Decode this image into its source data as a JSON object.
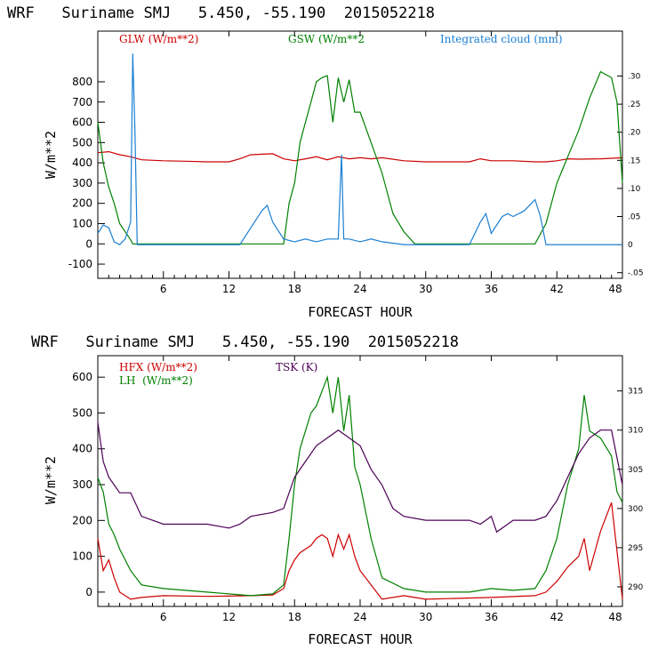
{
  "chart_data": [
    {
      "type": "line",
      "title": "WRF   Suriname SMJ   5.450, -55.190  2015052218",
      "xlabel": "FORECAST HOUR",
      "ylabel": "W/m**2",
      "xlim": [
        0,
        48
      ],
      "ylim": [
        -170,
        1050
      ],
      "y2lim": [
        -0.06,
        0.38
      ],
      "xticks": [
        6,
        12,
        18,
        24,
        30,
        36,
        42,
        48
      ],
      "yticks": [
        -100,
        0,
        100,
        200,
        300,
        400,
        500,
        600,
        700,
        800
      ],
      "y2ticks": [
        -0.05,
        0,
        0.05,
        0.1,
        0.15,
        0.2,
        0.25,
        0.3
      ],
      "y2ticklabels": [
        "-.05",
        "0",
        ".05",
        ".10",
        ".15",
        ".20",
        ".25",
        ".30"
      ],
      "series": [
        {
          "name": "GLW (W/m**2)",
          "color": "#cc0000",
          "axis": "left",
          "x": [
            0,
            1,
            2,
            3,
            4,
            6,
            8,
            10,
            12,
            13,
            14,
            16,
            17,
            18,
            19,
            20,
            21,
            22,
            23,
            24,
            25,
            26,
            28,
            30,
            34,
            35,
            36,
            38,
            40,
            41,
            42,
            43,
            44,
            46,
            48
          ],
          "y": [
            450,
            455,
            440,
            430,
            415,
            410,
            408,
            405,
            405,
            420,
            440,
            445,
            420,
            410,
            420,
            430,
            415,
            430,
            420,
            425,
            420,
            425,
            410,
            405,
            405,
            420,
            410,
            410,
            405,
            405,
            410,
            420,
            418,
            420,
            425
          ]
        },
        {
          "name": "GSW (W/m**2",
          "color": "#008000",
          "axis": "left",
          "x": [
            0,
            0.5,
            1,
            1.5,
            2,
            2.5,
            3,
            3.2,
            3.5,
            4,
            14,
            15,
            16,
            17,
            17.5,
            18,
            18.5,
            19,
            19.5,
            20,
            20.5,
            21,
            21.5,
            22,
            22.5,
            23,
            23.5,
            24,
            25,
            26,
            27,
            28,
            29,
            39,
            40,
            41,
            42,
            43,
            44,
            45,
            46,
            47,
            47.5,
            48
          ],
          "y": [
            600,
            400,
            280,
            200,
            100,
            60,
            20,
            0,
            0,
            0,
            0,
            0,
            0,
            0,
            200,
            300,
            500,
            600,
            700,
            800,
            820,
            830,
            600,
            820,
            700,
            810,
            650,
            650,
            500,
            350,
            150,
            60,
            0,
            0,
            0,
            100,
            300,
            430,
            560,
            720,
            850,
            820,
            700,
            300
          ]
        },
        {
          "name": "Integrated cloud (mm)",
          "color": "#1a7fd4",
          "axis": "right",
          "x": [
            0,
            0.5,
            1,
            1.5,
            2,
            2.5,
            3,
            3.2,
            3.4,
            3.6,
            4,
            6,
            10,
            13,
            14,
            15,
            15.5,
            16,
            17,
            18,
            19,
            20,
            21,
            22,
            22.3,
            22.5,
            23,
            24,
            25,
            26,
            28,
            34,
            35,
            35.5,
            36,
            37,
            37.5,
            38,
            39,
            40,
            40.5,
            41,
            44,
            46,
            48
          ],
          "y": [
            0.02,
            0.035,
            0.03,
            0.005,
            0,
            0.01,
            0.04,
            0.34,
            0.2,
            0,
            0,
            0,
            0,
            0,
            0.03,
            0.06,
            0.07,
            0.04,
            0.01,
            0.005,
            0.01,
            0.005,
            0.01,
            0.01,
            0.16,
            0.01,
            0.01,
            0.005,
            0.01,
            0.005,
            0.0,
            0,
            0.04,
            0.055,
            0.02,
            0.05,
            0.055,
            0.05,
            0.06,
            0.08,
            0.05,
            0,
            0,
            0,
            0
          ]
        }
      ]
    },
    {
      "type": "line",
      "title": "WRF   Suriname SMJ   5.450, -55.190  2015052218",
      "xlabel": "FORECAST HOUR",
      "ylabel": "W/m**2",
      "xlim": [
        0,
        48
      ],
      "ylim": [
        -40,
        660
      ],
      "y2lim": [
        287.5,
        319.5
      ],
      "xticks": [
        6,
        12,
        18,
        24,
        30,
        36,
        42,
        48
      ],
      "yticks": [
        0,
        100,
        200,
        300,
        400,
        500,
        600
      ],
      "y2ticks": [
        290,
        295,
        300,
        305,
        310,
        315
      ],
      "y2ticklabels": [
        "290",
        "295",
        "300",
        "305",
        "310",
        "315"
      ],
      "series": [
        {
          "name": "HFX (W/m**2)",
          "color": "#cc0000",
          "axis": "left",
          "x": [
            0,
            0.5,
            1,
            1.5,
            2,
            3,
            4,
            6,
            10,
            14,
            16,
            17,
            17.5,
            18,
            18.5,
            19,
            19.5,
            20,
            20.5,
            21,
            21.5,
            22,
            22.5,
            23,
            23.5,
            24,
            25,
            26,
            28,
            30,
            36,
            40,
            41,
            42,
            43,
            44,
            44.5,
            45,
            46,
            47,
            48
          ],
          "y": [
            150,
            60,
            90,
            40,
            0,
            -20,
            -15,
            -10,
            -12,
            -10,
            -8,
            10,
            60,
            90,
            110,
            120,
            130,
            150,
            160,
            150,
            100,
            160,
            120,
            160,
            100,
            60,
            20,
            -20,
            -10,
            -20,
            -15,
            -10,
            0,
            30,
            70,
            100,
            150,
            60,
            170,
            250,
            -20
          ]
        },
        {
          "name": "LH  (W/m**2)",
          "color": "#008000",
          "axis": "left",
          "x": [
            0,
            0.5,
            1,
            1.5,
            2,
            3,
            4,
            6,
            10,
            14,
            16,
            17,
            17.5,
            18,
            18.5,
            19,
            19.5,
            20,
            20.5,
            21,
            21.5,
            22,
            22.5,
            23,
            23.5,
            24,
            25,
            26,
            28,
            30,
            34,
            36,
            38,
            40,
            41,
            42,
            43,
            44,
            44.5,
            45,
            46,
            47,
            47.5,
            48
          ],
          "y": [
            320,
            280,
            190,
            160,
            120,
            60,
            20,
            10,
            0,
            -10,
            -5,
            20,
            150,
            300,
            400,
            450,
            500,
            520,
            560,
            600,
            500,
            600,
            450,
            550,
            350,
            300,
            150,
            40,
            10,
            0,
            0,
            10,
            5,
            10,
            60,
            150,
            300,
            400,
            550,
            450,
            430,
            380,
            280,
            250
          ]
        },
        {
          "name": "TSK (K)",
          "color": "#4b0055",
          "axis": "right",
          "x": [
            0,
            0.5,
            1,
            1.5,
            2,
            3,
            4,
            5,
            6,
            8,
            10,
            12,
            13,
            14,
            16,
            17,
            18,
            19,
            20,
            21,
            22,
            23,
            24,
            25,
            26,
            27,
            28,
            30,
            32,
            34,
            35,
            36,
            36.5,
            38,
            40,
            41,
            42,
            43,
            44,
            45,
            46,
            47,
            48
          ],
          "y": [
            311,
            306,
            304,
            303,
            302,
            302,
            299,
            298.5,
            298,
            298,
            298,
            297.5,
            298,
            299,
            299.5,
            300,
            304,
            306,
            308,
            309,
            310,
            309,
            308,
            305,
            303,
            300,
            299,
            298.5,
            298.5,
            298.5,
            298,
            299,
            297,
            298.5,
            298.5,
            299,
            301,
            304,
            307,
            309,
            310,
            310,
            303
          ]
        }
      ]
    }
  ]
}
